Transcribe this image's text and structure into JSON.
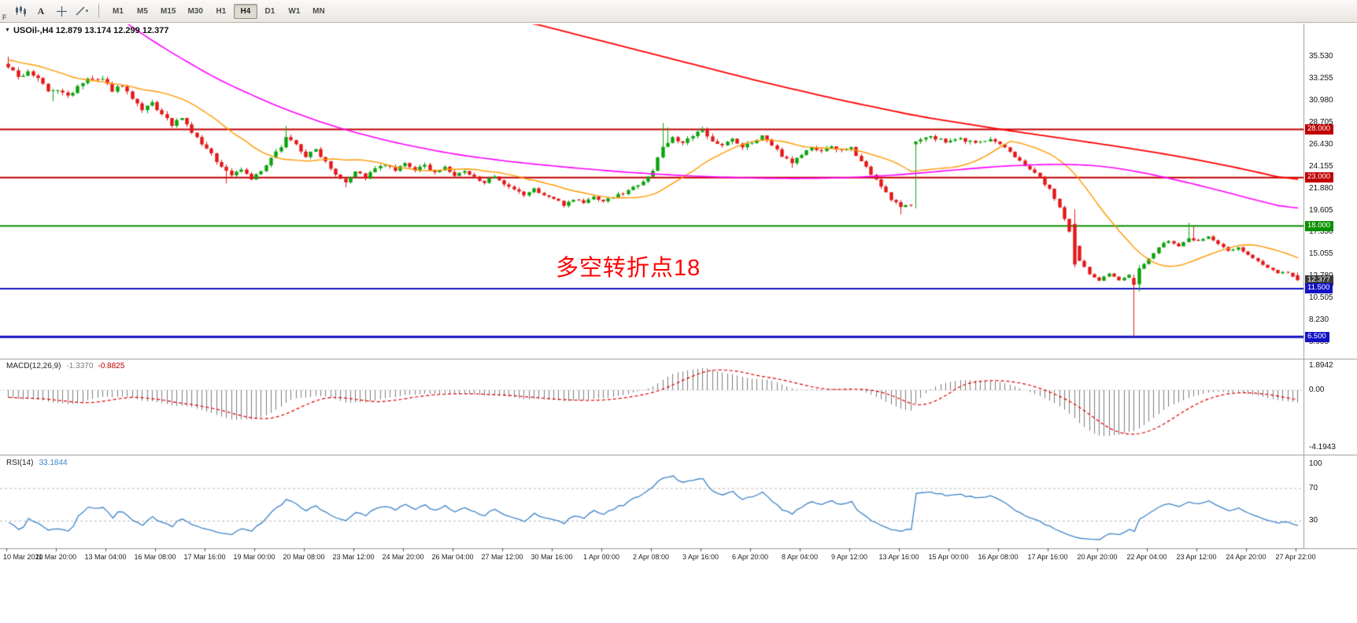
{
  "toolbar": {
    "f_label": "F",
    "cursor_label": "A",
    "timeframes": [
      "M1",
      "M5",
      "M15",
      "M30",
      "H1",
      "H4",
      "D1",
      "W1",
      "MN"
    ],
    "active_timeframe": "H4"
  },
  "chart": {
    "title": "USOil-,H4 12.879 13.174 12.299 12.377",
    "symbol": "USOil-",
    "period": "H4",
    "ohlc": {
      "open": "12.879",
      "high": "13.174",
      "low": "12.299",
      "close": "12.377"
    },
    "annotation": {
      "text": "多空转折点18",
      "color": "#ff0000"
    },
    "price_axis": [
      "35.530",
      "33.255",
      "30.980",
      "28.705",
      "26.430",
      "24.155",
      "21.880",
      "19.605",
      "17.330",
      "15.055",
      "12.780",
      "10.505",
      "8.230",
      "5.955"
    ],
    "price_tags": [
      {
        "label": "28.000",
        "price": 28.0,
        "bg": "#c00000"
      },
      {
        "label": "23.000",
        "price": 23.0,
        "bg": "#c00000"
      },
      {
        "label": "18.000",
        "price": 18.0,
        "bg": "#0a9000"
      },
      {
        "label": "12.377",
        "price": 12.377,
        "bg": "#3c3c3c"
      },
      {
        "label": "11.500",
        "price": 11.5,
        "bg": "#1212c4"
      },
      {
        "label": "6.500",
        "price": 6.5,
        "bg": "#1212c4"
      }
    ],
    "colors": {
      "up": "#0ca30c",
      "down": "#e31818"
    }
  },
  "macd": {
    "label": "MACD(12,26,9)",
    "value_main": "-1.3370",
    "value_signal": "-0.8825",
    "axis": [
      {
        "label": "1.8942",
        "v": 1.8942
      },
      {
        "label": "0.00",
        "v": 0
      },
      {
        "label": "-4.1943",
        "v": -4.1943
      }
    ],
    "colors": {
      "histogram": "#7d7d7d",
      "signal": "#e00000"
    }
  },
  "rsi": {
    "label": "RSI(14)",
    "value": "33.1844",
    "color": "#3d85c8",
    "axis": [
      {
        "label": "100",
        "v": 100
      },
      {
        "label": "70",
        "v": 70
      },
      {
        "label": "30",
        "v": 30
      }
    ]
  },
  "time_axis": [
    "10 Mar 2020",
    "11 Mar 20:00",
    "13 Mar 04:00",
    "16 Mar 08:00",
    "17 Mar 16:00",
    "19 Mar 00:00",
    "20 Mar 08:00",
    "23 Mar 12:00",
    "24 Mar 20:00",
    "26 Mar 04:00",
    "27 Mar 12:00",
    "30 Mar 16:00",
    "1 Apr 00:00",
    "2 Apr 08:00",
    "3 Apr 16:00",
    "6 Apr 20:00",
    "8 Apr 04:00",
    "9 Apr 12:00",
    "13 Apr 16:00",
    "15 Apr 00:00",
    "16 Apr 08:00",
    "17 Apr 16:00",
    "20 Apr 20:00",
    "22 Apr 04:00",
    "23 Apr 12:00",
    "24 Apr 20:00",
    "27 Apr 22:00"
  ],
  "chart_data": {
    "type": "candlestick",
    "symbol": "USOil-",
    "timeframe": "H4",
    "bars": 261,
    "noise_seed": 9,
    "prehistory_start": 37.8,
    "last_candle": {
      "open": 12.879,
      "high": 13.174,
      "low": 12.299,
      "close": 12.377
    },
    "price_axis_ticks": [
      35.53,
      33.255,
      30.98,
      28.705,
      26.43,
      24.155,
      21.88,
      19.605,
      17.33,
      15.055,
      12.78,
      10.505,
      8.23,
      5.955
    ],
    "horizontal_levels": [
      28.0,
      23.0,
      18.0,
      11.5,
      6.5
    ],
    "levels": [
      {
        "price": 28.0,
        "color": "#c00000",
        "w": 2
      },
      {
        "price": 23.0,
        "color": "#c00000",
        "w": 2
      },
      {
        "price": 18.0,
        "color": "#0a9000",
        "w": 2
      },
      {
        "price": 11.5,
        "color": "#1212c4",
        "w": 2
      },
      {
        "price": 6.5,
        "color": "#1212c4",
        "w": 3
      }
    ],
    "close_path": [
      [
        0,
        34.4
      ],
      [
        2,
        33.4
      ],
      [
        4,
        34.0
      ],
      [
        6,
        33.3
      ],
      [
        8,
        31.9
      ],
      [
        10,
        32.0
      ],
      [
        12,
        31.5
      ],
      [
        14,
        32.3
      ],
      [
        16,
        33.2
      ],
      [
        19,
        33.0
      ],
      [
        21,
        32.1
      ],
      [
        23,
        32.6
      ],
      [
        25,
        31.1
      ],
      [
        27,
        29.9
      ],
      [
        29,
        30.7
      ],
      [
        31,
        29.5
      ],
      [
        33,
        28.5
      ],
      [
        35,
        29.1
      ],
      [
        37,
        27.7
      ],
      [
        39,
        26.5
      ],
      [
        41,
        25.4
      ],
      [
        43,
        24.1
      ],
      [
        45,
        23.3
      ],
      [
        47,
        23.9
      ],
      [
        49,
        22.9
      ],
      [
        51,
        23.6
      ],
      [
        53,
        24.9
      ],
      [
        55,
        26.3
      ],
      [
        56,
        27.3
      ],
      [
        58,
        26.4
      ],
      [
        60,
        25.2
      ],
      [
        62,
        25.9
      ],
      [
        64,
        24.7
      ],
      [
        66,
        23.4
      ],
      [
        68,
        22.6
      ],
      [
        70,
        23.7
      ],
      [
        72,
        23.0
      ],
      [
        74,
        23.9
      ],
      [
        76,
        24.3
      ],
      [
        78,
        23.7
      ],
      [
        80,
        24.4
      ],
      [
        82,
        23.8
      ],
      [
        84,
        24.2
      ],
      [
        86,
        23.6
      ],
      [
        88,
        24.0
      ],
      [
        90,
        23.2
      ],
      [
        92,
        23.6
      ],
      [
        94,
        23.0
      ],
      [
        96,
        22.6
      ],
      [
        98,
        23.0
      ],
      [
        100,
        22.2
      ],
      [
        102,
        21.7
      ],
      [
        104,
        21.2
      ],
      [
        106,
        21.8
      ],
      [
        108,
        21.2
      ],
      [
        110,
        20.8
      ],
      [
        112,
        20.2
      ],
      [
        114,
        20.8
      ],
      [
        116,
        20.4
      ],
      [
        118,
        21.0
      ],
      [
        120,
        20.6
      ],
      [
        122,
        21.0
      ],
      [
        124,
        21.4
      ],
      [
        126,
        22.0
      ],
      [
        128,
        22.7
      ],
      [
        130,
        23.7
      ],
      [
        132,
        26.2
      ],
      [
        134,
        27.2
      ],
      [
        136,
        26.5
      ],
      [
        138,
        27.3
      ],
      [
        140,
        27.9
      ],
      [
        142,
        26.9
      ],
      [
        144,
        26.3
      ],
      [
        146,
        27.0
      ],
      [
        148,
        26.1
      ],
      [
        150,
        26.7
      ],
      [
        152,
        27.2
      ],
      [
        154,
        26.4
      ],
      [
        156,
        25.3
      ],
      [
        158,
        24.6
      ],
      [
        160,
        25.4
      ],
      [
        162,
        26.1
      ],
      [
        164,
        25.6
      ],
      [
        166,
        26.3
      ],
      [
        168,
        25.7
      ],
      [
        170,
        26.0
      ],
      [
        172,
        24.8
      ],
      [
        174,
        23.4
      ],
      [
        176,
        22.0
      ],
      [
        178,
        20.8
      ],
      [
        180,
        19.9
      ],
      [
        182,
        20.2
      ],
      [
        183,
        26.9
      ],
      [
        186,
        27.2
      ],
      [
        189,
        26.7
      ],
      [
        192,
        27.0
      ],
      [
        195,
        26.6
      ],
      [
        198,
        26.9
      ],
      [
        200,
        26.4
      ],
      [
        202,
        25.6
      ],
      [
        204,
        24.8
      ],
      [
        206,
        23.9
      ],
      [
        208,
        23.0
      ],
      [
        210,
        21.8
      ],
      [
        212,
        19.9
      ],
      [
        214,
        17.3
      ],
      [
        216,
        14.4
      ],
      [
        218,
        13.0
      ],
      [
        220,
        12.4
      ],
      [
        222,
        13.1
      ],
      [
        224,
        12.3
      ],
      [
        226,
        12.9
      ],
      [
        227,
        11.9
      ],
      [
        228,
        13.6
      ],
      [
        230,
        14.6
      ],
      [
        232,
        15.8
      ],
      [
        234,
        16.5
      ],
      [
        236,
        15.9
      ],
      [
        238,
        16.8
      ],
      [
        240,
        16.4
      ],
      [
        242,
        16.9
      ],
      [
        244,
        16.1
      ],
      [
        246,
        15.4
      ],
      [
        248,
        15.8
      ],
      [
        250,
        15.0
      ],
      [
        252,
        14.3
      ],
      [
        254,
        13.6
      ],
      [
        256,
        13.1
      ],
      [
        258,
        13.2
      ],
      [
        260,
        12.377
      ]
    ],
    "overrides": [
      {
        "bar": 0,
        "o": 34.8,
        "h": 35.53
      },
      {
        "bar": 9,
        "l": 30.9
      },
      {
        "bar": 44,
        "l": 22.4
      },
      {
        "bar": 56,
        "h": 28.35
      },
      {
        "bar": 68,
        "l": 22.0
      },
      {
        "bar": 112,
        "l": 19.9
      },
      {
        "bar": 132,
        "h": 28.66
      },
      {
        "bar": 133,
        "h": 28.2
      },
      {
        "bar": 140,
        "h": 28.3
      },
      {
        "bar": 158,
        "l": 24.0
      },
      {
        "bar": 180,
        "l": 19.2
      },
      {
        "bar": 183,
        "o": 26.45
      },
      {
        "bar": 215,
        "o": 18.2,
        "c": 14.0,
        "h": 19.7,
        "l": 13.7
      },
      {
        "bar": 227,
        "o": 12.6,
        "c": 11.9,
        "h": 12.95,
        "l": 6.5
      },
      {
        "bar": 228,
        "o": 11.95,
        "c": 13.6,
        "h": 13.95,
        "l": 11.2
      },
      {
        "bar": 238,
        "h": 18.32
      },
      {
        "bar": 239,
        "h": 17.9
      },
      {
        "bar": 260,
        "o": 12.879,
        "h": 13.174,
        "l": 12.299,
        "c": 12.377
      }
    ],
    "moving_averages": {
      "fast": {
        "period": 20,
        "color": "#ff9900"
      },
      "mid": {
        "color": "#ff00ff",
        "path": [
          [
            18,
            41.0
          ],
          [
            30,
            36.8
          ],
          [
            42,
            33.2
          ],
          [
            54,
            30.4
          ],
          [
            66,
            28.2
          ],
          [
            78,
            26.6
          ],
          [
            90,
            25.4
          ],
          [
            102,
            24.6
          ],
          [
            114,
            24.0
          ],
          [
            126,
            23.5
          ],
          [
            138,
            23.15
          ],
          [
            150,
            22.95
          ],
          [
            160,
            22.9
          ],
          [
            170,
            23.0
          ],
          [
            180,
            23.3
          ],
          [
            192,
            23.85
          ],
          [
            202,
            24.25
          ],
          [
            212,
            24.4
          ],
          [
            220,
            24.25
          ],
          [
            228,
            23.6
          ],
          [
            236,
            22.7
          ],
          [
            244,
            21.7
          ],
          [
            252,
            20.6
          ],
          [
            260,
            19.6
          ]
        ]
      },
      "slow": {
        "color": "#ff0000",
        "path": [
          [
            104,
            39.2
          ],
          [
            120,
            37.1
          ],
          [
            136,
            35.0
          ],
          [
            152,
            32.9
          ],
          [
            168,
            31.0
          ],
          [
            184,
            29.3
          ],
          [
            200,
            28.0
          ],
          [
            212,
            27.1
          ],
          [
            224,
            26.2
          ],
          [
            236,
            25.2
          ],
          [
            248,
            24.0
          ],
          [
            260,
            22.6
          ]
        ]
      }
    },
    "indicators": {
      "macd": {
        "params": [
          12,
          26,
          9
        ],
        "display_values": [
          -1.337,
          -0.8825
        ],
        "range": [
          1.8942,
          -4.1943
        ]
      },
      "rsi": {
        "period": 14,
        "display_value": 33.1844,
        "levels": [
          70,
          30
        ],
        "range": [
          0,
          100
        ]
      }
    }
  }
}
